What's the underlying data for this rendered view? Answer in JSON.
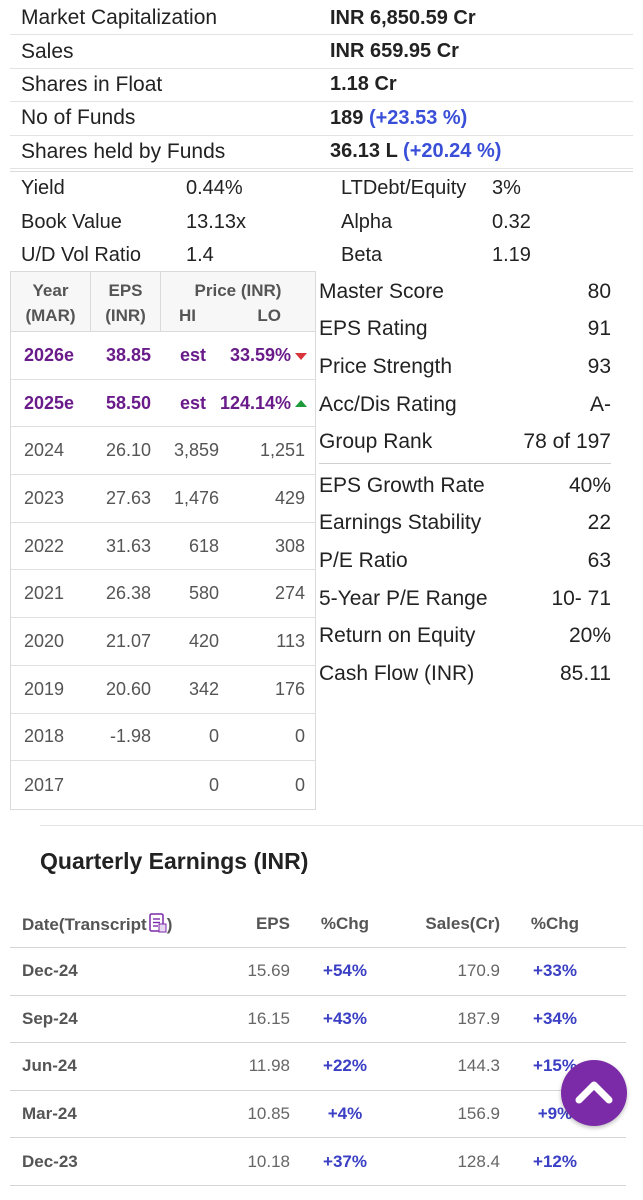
{
  "summary": [
    {
      "label": "Market Capitalization",
      "value": "INR 6,850.59 Cr",
      "change": ""
    },
    {
      "label": "Sales",
      "value": "INR 659.95 Cr",
      "change": ""
    },
    {
      "label": "Shares in Float",
      "value": "1.18 Cr",
      "change": ""
    },
    {
      "label": "No of Funds",
      "value": "189",
      "change": "(+23.53 %)"
    },
    {
      "label": "Shares held by Funds",
      "value": "36.13 L",
      "change": "(+20.24 %)"
    }
  ],
  "metrics": [
    {
      "l1": "Yield",
      "v1": "0.44%",
      "l2": "LTDebt/Equity",
      "v2": "3%"
    },
    {
      "l1": "Book Value",
      "v1": "13.13x",
      "l2": "Alpha",
      "v2": "0.32"
    },
    {
      "l1": "U/D Vol Ratio",
      "v1": "1.4",
      "l2": "Beta",
      "v2": "1.19"
    }
  ],
  "yearly": {
    "headers": {
      "year": "Year",
      "year_sub": "(MAR)",
      "eps": "EPS",
      "eps_sub": "(INR)",
      "price": "Price (INR)",
      "hi": "HI",
      "lo": "LO"
    },
    "estimates": [
      {
        "year": "2026e",
        "eps": "38.85",
        "hi": "est",
        "lo": "33.59%",
        "dir": "down"
      },
      {
        "year": "2025e",
        "eps": "58.50",
        "hi": "est",
        "lo": "124.14%",
        "dir": "up"
      }
    ],
    "rows": [
      {
        "year": "2024",
        "eps": "26.10",
        "hi": "3,859",
        "lo": "1,251"
      },
      {
        "year": "2023",
        "eps": "27.63",
        "hi": "1,476",
        "lo": "429"
      },
      {
        "year": "2022",
        "eps": "31.63",
        "hi": "618",
        "lo": "308"
      },
      {
        "year": "2021",
        "eps": "26.38",
        "hi": "580",
        "lo": "274"
      },
      {
        "year": "2020",
        "eps": "21.07",
        "hi": "420",
        "lo": "113"
      },
      {
        "year": "2019",
        "eps": "20.60",
        "hi": "342",
        "lo": "176"
      },
      {
        "year": "2018",
        "eps": "-1.98",
        "hi": "0",
        "lo": "0"
      },
      {
        "year": "2017",
        "eps": "",
        "hi": "0",
        "lo": "0"
      }
    ]
  },
  "ratings": {
    "group1": [
      {
        "label": "Master Score",
        "value": "80"
      },
      {
        "label": "EPS Rating",
        "value": "91"
      },
      {
        "label": "Price Strength",
        "value": "93"
      },
      {
        "label": "Acc/Dis Rating",
        "value": "A-"
      },
      {
        "label": "Group Rank",
        "value": "78 of 197"
      }
    ],
    "group2": [
      {
        "label": "EPS Growth Rate",
        "value": "40%"
      },
      {
        "label": "Earnings Stability",
        "value": "22"
      },
      {
        "label": "P/E Ratio",
        "value": "63"
      },
      {
        "label": "5-Year P/E Range",
        "value": "10- 71"
      },
      {
        "label": "Return on Equity",
        "value": "20%"
      },
      {
        "label": "Cash Flow (INR)",
        "value": "85.11"
      }
    ]
  },
  "quarterly": {
    "title": "Quarterly Earnings (INR)",
    "headers": {
      "date": "Date(Transcript",
      "date_close": ")",
      "eps": "EPS",
      "chg1": "%Chg",
      "sales": "Sales(Cr)",
      "chg2": "%Chg"
    },
    "rows": [
      {
        "date": "Dec-24",
        "eps": "15.69",
        "chg1": "+54%",
        "sales": "170.9",
        "chg2": "+33%"
      },
      {
        "date": "Sep-24",
        "eps": "16.15",
        "chg1": "+43%",
        "sales": "187.9",
        "chg2": "+34%"
      },
      {
        "date": "Jun-24",
        "eps": "11.98",
        "chg1": "+22%",
        "sales": "144.3",
        "chg2": "+15%"
      },
      {
        "date": "Mar-24",
        "eps": "10.85",
        "chg1": "+4%",
        "sales": "156.9",
        "chg2": "+9%"
      },
      {
        "date": "Dec-23",
        "eps": "10.18",
        "chg1": "+37%",
        "sales": "128.4",
        "chg2": "+12%"
      }
    ]
  },
  "colors": {
    "accent_purple": "#7b2aa8",
    "change_blue": "#3a4fd8",
    "down_red": "#d9343b",
    "up_green": "#1f9a3c"
  },
  "icons": {
    "transcript": "document-icon",
    "scroll_top": "chevron-up-icon"
  }
}
